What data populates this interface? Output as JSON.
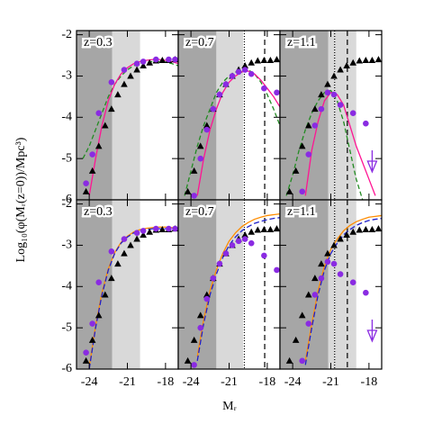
{
  "figure": {
    "xlabel": "Mᵣ",
    "ylabel": "Log₁₀(φ(Mᵣ(z=0))/Mpc³)"
  },
  "chart_data": [
    {
      "type": "line",
      "annotation": "z=0.3",
      "xlim": [
        -25,
        -17
      ],
      "ylim": [
        -6,
        -1.9
      ],
      "xticks": [
        -24,
        -21,
        -18
      ],
      "yticks": [
        -6,
        -5,
        -4,
        -3,
        -2
      ],
      "shaded": [
        {
          "from": -25,
          "to": -22.2,
          "color": "#a6a6a6"
        },
        {
          "from": -22.2,
          "to": -20,
          "color": "#d9d9d9"
        }
      ],
      "vlines": [],
      "x": [
        -24.5,
        -24,
        -23.5,
        -23,
        -22.5,
        -22,
        -21.5,
        -21,
        -20.5,
        -20,
        -19.5,
        -19,
        -18.5,
        -18,
        -17.5,
        -17
      ],
      "series": [
        {
          "color": "#228b22",
          "dash": "5,3",
          "values": [
            -5.0,
            -4.7,
            -4.3,
            -3.9,
            -3.5,
            -3.2,
            -3.0,
            -2.85,
            -2.75,
            -2.7,
            -2.67,
            -2.65,
            -2.65,
            -2.66,
            -2.7,
            -2.75
          ]
        },
        {
          "color": "#ff1493",
          "dash": "none",
          "values": [
            null,
            -5.9,
            -5.0,
            -4.2,
            -3.6,
            -3.2,
            -2.95,
            -2.8,
            -2.7,
            -2.65,
            -2.62,
            -2.6,
            -2.6,
            -2.62,
            -2.65,
            -2.7
          ]
        }
      ],
      "points": [
        {
          "marker": "triangle",
          "color": "#000000",
          "x": [
            -24.25,
            -23.75,
            -23.25,
            -22.75,
            -22.25,
            -21.75,
            -21.25,
            -20.75,
            -20.25,
            -19.75,
            -19.25,
            -18.75,
            -18.25,
            -17.75,
            -17.25
          ],
          "values": [
            -5.8,
            -5.3,
            -4.7,
            -4.2,
            -3.8,
            -3.45,
            -3.2,
            -3.0,
            -2.85,
            -2.75,
            -2.68,
            -2.63,
            -2.62,
            -2.62,
            -2.6
          ]
        },
        {
          "marker": "circle",
          "color": "#8a2be2",
          "x": [
            -24.25,
            -23.75,
            -23.25,
            -22.25,
            -21.25,
            -20.25,
            -19.75,
            -18.75,
            -17.75,
            -17.25
          ],
          "values": [
            -5.6,
            -4.9,
            -3.9,
            -3.15,
            -2.85,
            -2.7,
            -2.65,
            -2.6,
            -2.6,
            -2.6
          ]
        }
      ]
    },
    {
      "type": "line",
      "annotation": "z=0.7",
      "xlim": [
        -25,
        -17
      ],
      "ylim": [
        -6,
        -1.9
      ],
      "xticks": [
        -24,
        -21,
        -18
      ],
      "yticks": [
        -6,
        -5,
        -4,
        -3,
        -2
      ],
      "shaded": [
        {
          "from": -25,
          "to": -22,
          "color": "#a6a6a6"
        },
        {
          "from": -22,
          "to": -19.9,
          "color": "#d9d9d9"
        }
      ],
      "vlines": [
        {
          "value": -19.8,
          "dash": "1,2"
        },
        {
          "value": -18.2,
          "dash": "6,4"
        }
      ],
      "x": [
        -24.5,
        -24,
        -23.5,
        -23,
        -22.5,
        -22,
        -21.5,
        -21,
        -20.5,
        -20,
        -19.5,
        -19,
        -18.5,
        -18,
        -17.5,
        -17
      ],
      "series": [
        {
          "color": "#228b22",
          "dash": "5,3",
          "values": [
            -5.9,
            -5.3,
            -4.7,
            -4.2,
            -3.8,
            -3.4,
            -3.15,
            -3.0,
            -2.9,
            -2.85,
            -2.85,
            -2.95,
            -3.15,
            -3.45,
            -3.8,
            -4.2
          ]
        },
        {
          "color": "#ff1493",
          "dash": "none",
          "values": [
            null,
            null,
            -5.9,
            -5.0,
            -4.3,
            -3.8,
            -3.4,
            -3.15,
            -3.0,
            -2.9,
            -2.88,
            -2.95,
            -3.1,
            -3.3,
            -3.5,
            -3.75
          ]
        }
      ],
      "points": [
        {
          "marker": "triangle",
          "color": "#000000",
          "x": [
            -24.25,
            -23.75,
            -23.25,
            -22.75,
            -22.25,
            -21.75,
            -21.25,
            -20.75,
            -20.25,
            -19.75,
            -19.25,
            -18.75,
            -18.25,
            -17.75,
            -17.25
          ],
          "values": [
            -5.8,
            -5.3,
            -4.7,
            -4.2,
            -3.8,
            -3.45,
            -3.2,
            -3.0,
            -2.85,
            -2.75,
            -2.68,
            -2.63,
            -2.62,
            -2.62,
            -2.6
          ]
        },
        {
          "marker": "circle",
          "color": "#8a2be2",
          "x": [
            -23.75,
            -23.25,
            -22.75,
            -22.25,
            -21.75,
            -21.25,
            -20.75,
            -20.25,
            -19.75,
            -19.25,
            -18.25,
            -17.25
          ],
          "values": [
            -5.9,
            -5.0,
            -4.3,
            -3.8,
            -3.45,
            -3.2,
            -3.0,
            -2.9,
            -2.85,
            -2.95,
            -3.3,
            -3.4
          ]
        }
      ]
    },
    {
      "type": "line",
      "annotation": "z=1.1",
      "xlim": [
        -25,
        -17
      ],
      "ylim": [
        -6,
        -1.9
      ],
      "xticks": [
        -24,
        -21,
        -18
      ],
      "yticks": [
        -6,
        -5,
        -4,
        -3,
        -2
      ],
      "shaded": [
        {
          "from": -25,
          "to": -21.2,
          "color": "#a6a6a6"
        },
        {
          "from": -21.2,
          "to": -19,
          "color": "#d9d9d9"
        }
      ],
      "vlines": [
        {
          "value": -20.7,
          "dash": "1,2"
        },
        {
          "value": -19.7,
          "dash": "6,4"
        }
      ],
      "x": [
        -24.5,
        -24,
        -23.5,
        -23,
        -22.5,
        -22,
        -21.5,
        -21,
        -20.5,
        -20,
        -19.5,
        -19,
        -18.5,
        -18,
        -17.5,
        -17
      ],
      "series": [
        {
          "color": "#228b22",
          "dash": "5,3",
          "values": [
            -5.9,
            -5.4,
            -4.8,
            -4.3,
            -3.9,
            -3.6,
            -3.4,
            -3.35,
            -3.6,
            -4.1,
            -4.8,
            -5.5,
            -6.0,
            null,
            null,
            null
          ]
        },
        {
          "color": "#ff1493",
          "dash": "none",
          "values": [
            null,
            null,
            null,
            -5.9,
            -4.8,
            -4.1,
            -3.6,
            -3.4,
            -3.45,
            -3.7,
            -4.2,
            -4.7,
            -5.1,
            -5.5,
            -5.9,
            null
          ]
        }
      ],
      "points": [
        {
          "marker": "triangle",
          "color": "#000000",
          "x": [
            -24.25,
            -23.75,
            -23.25,
            -22.75,
            -22.25,
            -21.75,
            -21.25,
            -20.75,
            -20.25,
            -19.75,
            -19.25,
            -18.75,
            -18.25,
            -17.75,
            -17.25
          ],
          "values": [
            -5.8,
            -5.3,
            -4.7,
            -4.2,
            -3.8,
            -3.45,
            -3.2,
            -3.0,
            -2.85,
            -2.75,
            -2.68,
            -2.63,
            -2.62,
            -2.62,
            -2.6
          ]
        },
        {
          "marker": "circle",
          "color": "#8a2be2",
          "x": [
            -23.25,
            -22.75,
            -22.25,
            -21.75,
            -21.25,
            -20.75,
            -20.25,
            -19.25,
            -18.25
          ],
          "values": [
            -5.8,
            -4.9,
            -4.2,
            -3.8,
            -3.4,
            -3.45,
            -3.7,
            -3.9,
            -4.15
          ]
        },
        {
          "marker": "arrow",
          "color": "#8a2be2",
          "x": [
            -17.75
          ],
          "values": [
            -4.8
          ]
        }
      ]
    },
    {
      "type": "line",
      "annotation": "z=0.3",
      "xlim": [
        -25,
        -17
      ],
      "ylim": [
        -6,
        -1.9
      ],
      "xticks": [
        -24,
        -21,
        -18
      ],
      "yticks": [
        -6,
        -5,
        -4,
        -3,
        -2
      ],
      "shaded": [
        {
          "from": -25,
          "to": -22.2,
          "color": "#a6a6a6"
        },
        {
          "from": -22.2,
          "to": -20,
          "color": "#d9d9d9"
        }
      ],
      "vlines": [],
      "x": [
        -24.5,
        -24,
        -23.5,
        -23,
        -22.5,
        -22,
        -21.5,
        -21,
        -20.5,
        -20,
        -19.5,
        -19,
        -18.5,
        -18,
        -17.5,
        -17
      ],
      "series": [
        {
          "color": "#ff8c00",
          "dash": "none",
          "values": [
            null,
            -5.95,
            -4.95,
            -4.15,
            -3.57,
            -3.18,
            -2.93,
            -2.78,
            -2.68,
            -2.62,
            -2.59,
            -2.57,
            -2.56,
            -2.56,
            -2.57,
            -2.6
          ]
        },
        {
          "color": "#1f1fcc",
          "dash": "6,3",
          "values": [
            null,
            -6.0,
            -5.0,
            -4.2,
            -3.6,
            -3.2,
            -2.95,
            -2.8,
            -2.7,
            -2.65,
            -2.62,
            -2.6,
            -2.6,
            -2.6,
            -2.62,
            -2.65
          ]
        }
      ],
      "points": [
        {
          "marker": "triangle",
          "color": "#000000",
          "x": [
            -24.25,
            -23.75,
            -23.25,
            -22.75,
            -22.25,
            -21.75,
            -21.25,
            -20.75,
            -20.25,
            -19.75,
            -19.25,
            -18.75,
            -18.25,
            -17.75,
            -17.25
          ],
          "values": [
            -5.8,
            -5.3,
            -4.7,
            -4.2,
            -3.8,
            -3.45,
            -3.2,
            -3.0,
            -2.85,
            -2.75,
            -2.68,
            -2.63,
            -2.62,
            -2.62,
            -2.6
          ]
        },
        {
          "marker": "circle",
          "color": "#8a2be2",
          "x": [
            -24.25,
            -23.75,
            -23.25,
            -22.25,
            -21.25,
            -20.25,
            -19.75,
            -18.75,
            -17.75,
            -17.25
          ],
          "values": [
            -5.6,
            -4.9,
            -3.9,
            -3.15,
            -2.85,
            -2.7,
            -2.65,
            -2.6,
            -2.6,
            -2.6
          ]
        }
      ]
    },
    {
      "type": "line",
      "annotation": "z=0.7",
      "xlim": [
        -25,
        -17
      ],
      "ylim": [
        -6,
        -1.9
      ],
      "xticks": [
        -24,
        -21,
        -18
      ],
      "yticks": [
        -6,
        -5,
        -4,
        -3,
        -2
      ],
      "shaded": [
        {
          "from": -25,
          "to": -22,
          "color": "#a6a6a6"
        },
        {
          "from": -22,
          "to": -19.9,
          "color": "#d9d9d9"
        }
      ],
      "vlines": [
        {
          "value": -19.8,
          "dash": "1,2"
        },
        {
          "value": -18.2,
          "dash": "6,4"
        }
      ],
      "x": [
        -24.5,
        -24,
        -23.5,
        -23,
        -22.5,
        -22,
        -21.5,
        -21,
        -20.5,
        -20,
        -19.5,
        -19,
        -18.5,
        -18,
        -17.5,
        -17
      ],
      "series": [
        {
          "color": "#ff8c00",
          "dash": "none",
          "values": [
            null,
            null,
            -5.7,
            -4.8,
            -4.1,
            -3.6,
            -3.2,
            -2.9,
            -2.7,
            -2.55,
            -2.45,
            -2.37,
            -2.32,
            -2.28,
            -2.26,
            -2.24
          ]
        },
        {
          "color": "#1f1fcc",
          "dash": "6,3",
          "values": [
            null,
            null,
            -5.8,
            -4.9,
            -4.2,
            -3.7,
            -3.3,
            -3.0,
            -2.8,
            -2.65,
            -2.55,
            -2.47,
            -2.42,
            -2.38,
            -2.35,
            -2.33
          ]
        }
      ],
      "points": [
        {
          "marker": "triangle",
          "color": "#000000",
          "x": [
            -24.25,
            -23.75,
            -23.25,
            -22.75,
            -22.25,
            -21.75,
            -21.25,
            -20.75,
            -20.25,
            -19.75,
            -19.25,
            -18.75,
            -18.25,
            -17.75,
            -17.25
          ],
          "values": [
            -5.8,
            -5.3,
            -4.7,
            -4.2,
            -3.8,
            -3.45,
            -3.2,
            -3.0,
            -2.85,
            -2.75,
            -2.68,
            -2.63,
            -2.62,
            -2.62,
            -2.6
          ]
        },
        {
          "marker": "circle",
          "color": "#8a2be2",
          "x": [
            -23.75,
            -23.25,
            -22.75,
            -22.25,
            -21.75,
            -21.25,
            -20.75,
            -20.25,
            -19.75,
            -19.25,
            -18.25,
            -17.25
          ],
          "values": [
            -5.9,
            -5.0,
            -4.3,
            -3.8,
            -3.45,
            -3.2,
            -3.0,
            -2.9,
            -2.85,
            -2.95,
            -3.25,
            -3.6
          ]
        }
      ]
    },
    {
      "type": "line",
      "annotation": "z=1.1",
      "xlim": [
        -25,
        -17
      ],
      "ylim": [
        -6,
        -1.9
      ],
      "xticks": [
        -24,
        -21,
        -18
      ],
      "yticks": [
        -6,
        -5,
        -4,
        -3,
        -2
      ],
      "shaded": [
        {
          "from": -25,
          "to": -21.2,
          "color": "#a6a6a6"
        },
        {
          "from": -21.2,
          "to": -19,
          "color": "#d9d9d9"
        }
      ],
      "vlines": [
        {
          "value": -20.7,
          "dash": "1,2"
        },
        {
          "value": -19.7,
          "dash": "6,4"
        }
      ],
      "x": [
        -24.5,
        -24,
        -23.5,
        -23,
        -22.5,
        -22,
        -21.5,
        -21,
        -20.5,
        -20,
        -19.5,
        -19,
        -18.5,
        -18,
        -17.5,
        -17
      ],
      "series": [
        {
          "color": "#ff8c00",
          "dash": "none",
          "values": [
            null,
            null,
            null,
            -5.8,
            -4.9,
            -4.1,
            -3.5,
            -3.1,
            -2.85,
            -2.65,
            -2.52,
            -2.43,
            -2.37,
            -2.32,
            -2.3,
            -2.28
          ]
        },
        {
          "color": "#1f1fcc",
          "dash": "6,3",
          "values": [
            null,
            null,
            null,
            -5.9,
            -5.0,
            -4.2,
            -3.6,
            -3.2,
            -2.95,
            -2.75,
            -2.62,
            -2.52,
            -2.45,
            -2.4,
            -2.37,
            -2.35
          ]
        }
      ],
      "points": [
        {
          "marker": "triangle",
          "color": "#000000",
          "x": [
            -24.25,
            -23.75,
            -23.25,
            -22.75,
            -22.25,
            -21.75,
            -21.25,
            -20.75,
            -20.25,
            -19.75,
            -19.25,
            -18.75,
            -18.25,
            -17.75,
            -17.25
          ],
          "values": [
            -5.8,
            -5.3,
            -4.7,
            -4.2,
            -3.8,
            -3.45,
            -3.2,
            -3.0,
            -2.85,
            -2.75,
            -2.68,
            -2.63,
            -2.62,
            -2.62,
            -2.6
          ]
        },
        {
          "marker": "circle",
          "color": "#8a2be2",
          "x": [
            -23.25,
            -22.75,
            -22.25,
            -21.75,
            -21.25,
            -20.75,
            -20.25,
            -19.25,
            -18.25
          ],
          "values": [
            -5.8,
            -4.9,
            -4.2,
            -3.8,
            -3.4,
            -3.45,
            -3.7,
            -3.9,
            -4.15
          ]
        },
        {
          "marker": "arrow",
          "color": "#8a2be2",
          "x": [
            -17.75
          ],
          "values": [
            -4.8
          ]
        }
      ]
    }
  ]
}
